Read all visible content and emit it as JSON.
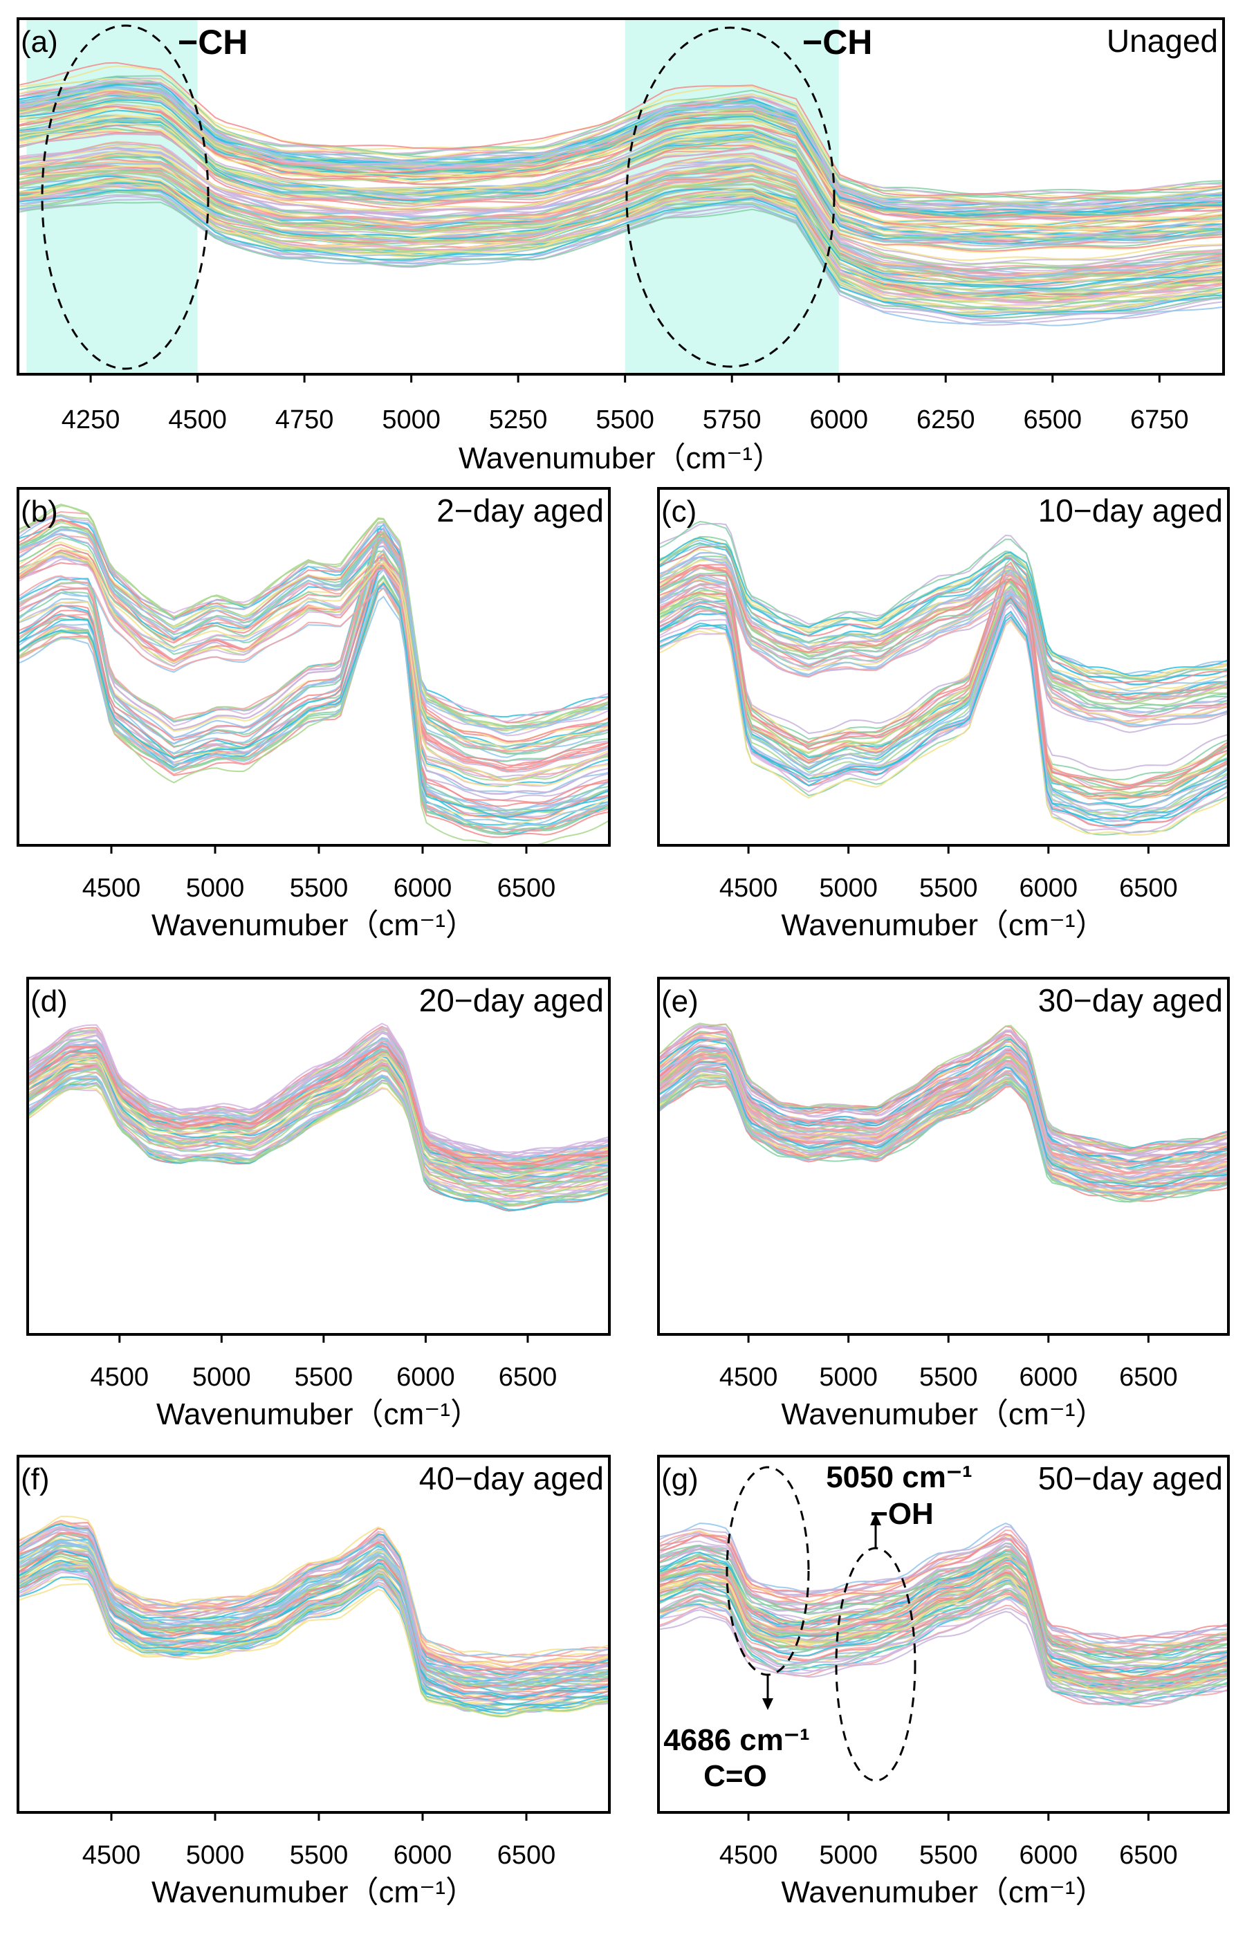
{
  "figure": {
    "panels": [
      {
        "id": "a",
        "letter": "(a)",
        "title": "Unaged"
      },
      {
        "id": "b",
        "letter": "(b)",
        "title": "2−day aged"
      },
      {
        "id": "c",
        "letter": "(c)",
        "title": "10−day aged"
      },
      {
        "id": "d",
        "letter": "(d)",
        "title": "20−day aged"
      },
      {
        "id": "e",
        "letter": "(e)",
        "title": "30−day aged"
      },
      {
        "id": "f",
        "letter": "(f)",
        "title": "40−day aged"
      },
      {
        "id": "g",
        "letter": "(g)",
        "title": "50−day aged"
      }
    ],
    "annotations": {
      "a_left": "−CH",
      "a_right": "−CH",
      "g_co_wave": "4686 cm⁻¹",
      "g_co_group": "C=O",
      "g_oh_wave": "5050 cm⁻¹",
      "g_oh_group": "−OH"
    },
    "highlight_color": "#d2faf2",
    "palette": [
      "#f48a8c",
      "#f7a1a2",
      "#a8d88c",
      "#84d0a6",
      "#2ac0e0",
      "#8fc4ec",
      "#d6b4e0",
      "#f4e28a",
      "#c7b3dc"
    ]
  },
  "chart_data": [
    {
      "id": "a",
      "type": "line",
      "xlabel": "Wavenumuber（cm⁻¹）",
      "ylabel": "",
      "xlim": [
        4080,
        6900
      ],
      "ylim": [
        0,
        1
      ],
      "xticks": [
        4250,
        4500,
        4750,
        5000,
        5250,
        5500,
        5750,
        6000,
        6250,
        6500,
        6750
      ],
      "highlight_bands": [
        [
          4100,
          4500
        ],
        [
          5500,
          6000
        ]
      ],
      "series": [
        {
          "name": "",
          "x": [
            4080,
            4300,
            4420,
            4550,
            4700,
            5000,
            5300,
            5450,
            5600,
            5800,
            5900,
            6000,
            6100,
            6300,
            6500,
            6700,
            6900
          ],
          "values": [
            0.72,
            0.77,
            0.76,
            0.62,
            0.57,
            0.55,
            0.57,
            0.62,
            0.7,
            0.72,
            0.68,
            0.48,
            0.44,
            0.43,
            0.43,
            0.44,
            0.46
          ]
        },
        {
          "name": "",
          "x": [
            4080,
            4300,
            4420,
            4550,
            4700,
            5000,
            5300,
            5450,
            5600,
            5800,
            5900,
            6000,
            6100,
            6300,
            6500,
            6700,
            6900
          ],
          "values": [
            0.53,
            0.57,
            0.56,
            0.45,
            0.4,
            0.38,
            0.4,
            0.45,
            0.52,
            0.54,
            0.5,
            0.31,
            0.26,
            0.23,
            0.23,
            0.25,
            0.28
          ]
        }
      ]
    },
    {
      "id": "b",
      "type": "line",
      "xlabel": "Wavenumuber（cm⁻¹）",
      "ylabel": "",
      "xlim": [
        4050,
        6900
      ],
      "ylim": [
        0,
        1
      ],
      "xticks": [
        4500,
        5000,
        5500,
        6000,
        6500
      ],
      "series": [
        {
          "name": "",
          "x": [
            4050,
            4250,
            4400,
            4500,
            4650,
            4800,
            5000,
            5150,
            5300,
            5450,
            5600,
            5800,
            5900,
            6000,
            6200,
            6400,
            6600,
            6900
          ],
          "values": [
            0.8,
            0.86,
            0.84,
            0.7,
            0.62,
            0.57,
            0.62,
            0.6,
            0.66,
            0.72,
            0.7,
            0.84,
            0.76,
            0.36,
            0.3,
            0.27,
            0.29,
            0.34
          ]
        },
        {
          "name": "",
          "x": [
            4050,
            4250,
            4400,
            4500,
            4650,
            4800,
            5000,
            5150,
            5300,
            5450,
            5600,
            5800,
            5900,
            6000,
            6200,
            6400,
            6600,
            6900
          ],
          "values": [
            0.6,
            0.67,
            0.66,
            0.4,
            0.33,
            0.27,
            0.31,
            0.3,
            0.36,
            0.42,
            0.44,
            0.82,
            0.72,
            0.17,
            0.12,
            0.1,
            0.11,
            0.17
          ]
        }
      ]
    },
    {
      "id": "c",
      "type": "line",
      "xlabel": "Wavenumuber（cm⁻¹）",
      "ylabel": "",
      "xlim": [
        4050,
        6900
      ],
      "ylim": [
        0,
        1
      ],
      "xticks": [
        4500,
        5000,
        5500,
        6000,
        6500
      ],
      "series": [
        {
          "name": "",
          "x": [
            4050,
            4250,
            4400,
            4500,
            4650,
            4800,
            5000,
            5150,
            5300,
            5450,
            5600,
            5800,
            5900,
            6000,
            6200,
            6400,
            6600,
            6900
          ],
          "values": [
            0.74,
            0.8,
            0.79,
            0.62,
            0.57,
            0.54,
            0.57,
            0.56,
            0.61,
            0.66,
            0.68,
            0.77,
            0.72,
            0.47,
            0.42,
            0.4,
            0.41,
            0.44
          ]
        },
        {
          "name": "",
          "x": [
            4050,
            4250,
            4400,
            4500,
            4650,
            4800,
            5000,
            5150,
            5300,
            5450,
            5600,
            5800,
            5900,
            6000,
            6200,
            6400,
            6600,
            6900
          ],
          "values": [
            0.62,
            0.68,
            0.67,
            0.32,
            0.27,
            0.22,
            0.26,
            0.25,
            0.3,
            0.36,
            0.4,
            0.72,
            0.64,
            0.16,
            0.12,
            0.11,
            0.13,
            0.22
          ]
        }
      ]
    },
    {
      "id": "d",
      "type": "line",
      "xlabel": "Wavenumuber（cm⁻¹）",
      "ylabel": "",
      "xlim": [
        4050,
        6900
      ],
      "ylim": [
        0,
        1
      ],
      "xticks": [
        4500,
        5000,
        5500,
        6000,
        6500
      ],
      "series": [
        {
          "name": "",
          "x": [
            4050,
            4250,
            4400,
            4500,
            4650,
            4800,
            5000,
            5150,
            5300,
            5450,
            5600,
            5800,
            5900,
            6000,
            6200,
            6400,
            6600,
            6900
          ],
          "values": [
            0.68,
            0.76,
            0.77,
            0.64,
            0.57,
            0.55,
            0.56,
            0.55,
            0.6,
            0.66,
            0.7,
            0.78,
            0.7,
            0.49,
            0.45,
            0.43,
            0.44,
            0.47
          ]
        }
      ]
    },
    {
      "id": "e",
      "type": "line",
      "xlabel": "Wavenumuber（cm⁻¹）",
      "ylabel": "",
      "xlim": [
        4050,
        6900
      ],
      "ylim": [
        0,
        1
      ],
      "xticks": [
        4500,
        5000,
        5500,
        6000,
        6500
      ],
      "series": [
        {
          "name": "",
          "x": [
            4050,
            4250,
            4400,
            4500,
            4650,
            4800,
            5000,
            5150,
            5300,
            5450,
            5600,
            5800,
            5900,
            6000,
            6200,
            6400,
            6600,
            6900
          ],
          "values": [
            0.7,
            0.78,
            0.78,
            0.63,
            0.58,
            0.56,
            0.57,
            0.56,
            0.61,
            0.67,
            0.7,
            0.78,
            0.72,
            0.51,
            0.47,
            0.45,
            0.46,
            0.49
          ]
        }
      ]
    },
    {
      "id": "f",
      "type": "line",
      "xlabel": "Wavenumuber（cm⁻¹）",
      "ylabel": "",
      "xlim": [
        4050,
        6900
      ],
      "ylim": [
        0,
        1
      ],
      "xticks": [
        4500,
        5000,
        5500,
        6000,
        6500
      ],
      "series": [
        {
          "name": "",
          "x": [
            4050,
            4250,
            4400,
            4500,
            4650,
            4800,
            5000,
            5150,
            5300,
            5450,
            5600,
            5800,
            5900,
            6000,
            6200,
            6400,
            6600,
            6900
          ],
          "values": [
            0.68,
            0.74,
            0.73,
            0.57,
            0.52,
            0.51,
            0.52,
            0.53,
            0.56,
            0.62,
            0.64,
            0.72,
            0.64,
            0.4,
            0.36,
            0.35,
            0.36,
            0.38
          ]
        }
      ]
    },
    {
      "id": "g",
      "type": "line",
      "xlabel": "Wavenumuber（cm⁻¹）",
      "ylabel": "",
      "xlim": [
        4050,
        6900
      ],
      "ylim": [
        0,
        1
      ],
      "xticks": [
        4500,
        5000,
        5500,
        6000,
        6500
      ],
      "series": [
        {
          "name": "",
          "x": [
            4050,
            4250,
            4400,
            4500,
            4650,
            4800,
            5000,
            5150,
            5300,
            5450,
            5600,
            5800,
            5900,
            6000,
            6200,
            6400,
            6600,
            6900
          ],
          "values": [
            0.68,
            0.72,
            0.7,
            0.58,
            0.55,
            0.54,
            0.56,
            0.57,
            0.59,
            0.64,
            0.66,
            0.72,
            0.66,
            0.45,
            0.42,
            0.41,
            0.42,
            0.45
          ]
        },
        {
          "name": "",
          "x": [
            4050,
            4250,
            4400,
            4500,
            4650,
            4800,
            5000,
            5150,
            5300,
            5450,
            5600,
            5800,
            5900,
            6000,
            6200,
            6400,
            6600,
            6900
          ],
          "values": [
            0.6,
            0.64,
            0.62,
            0.5,
            0.46,
            0.46,
            0.48,
            0.5,
            0.53,
            0.58,
            0.6,
            0.66,
            0.62,
            0.41,
            0.38,
            0.37,
            0.38,
            0.42
          ]
        }
      ]
    }
  ]
}
